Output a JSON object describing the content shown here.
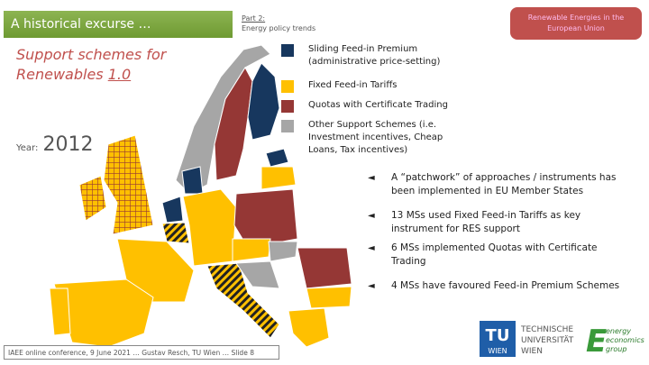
{
  "header": {
    "title": "A historical excurse …",
    "part": "Part 2:",
    "section": "Energy policy trends",
    "badge": "Renewable Energies in the European Union"
  },
  "heading": {
    "text": "Support schemes for Renewables",
    "version": "1.0"
  },
  "year": {
    "label": "Year:",
    "value": "2012"
  },
  "legend": [
    {
      "label": "Sliding Feed-in Premium (administrative price-setting)",
      "color": "#17375e"
    },
    {
      "label": "Fixed Feed-in Tariffs",
      "color": "#ffc000"
    },
    {
      "label": "Quotas with Certificate Trading",
      "color": "#953735"
    },
    {
      "label": "Other Support Schemes (i.e. Investment incentives, Cheap Loans, Tax incentives)",
      "color": "#a6a6a6"
    }
  ],
  "bullets": [
    "A “patchwork” of approaches / instruments has been implemented in EU Member States",
    "13 MSs used Fixed Feed-in Tariffs as key instrument for RES support",
    "6 MSs implemented Quotas with Certificate Trading",
    "4 MSs have favoured Feed-in Premium Schemes"
  ],
  "footer": "IAEE online conference, 9 June 2021 … Gustav Resch, TU Wien … Slide 8",
  "logos": {
    "tu_mark_top": "TU",
    "tu_mark_bottom": "WIEN",
    "tu_name": [
      "TECHNISCHE",
      "UNIVERSITÄT",
      "WIEN"
    ],
    "eeg": [
      "energy",
      "economics",
      "group"
    ]
  }
}
